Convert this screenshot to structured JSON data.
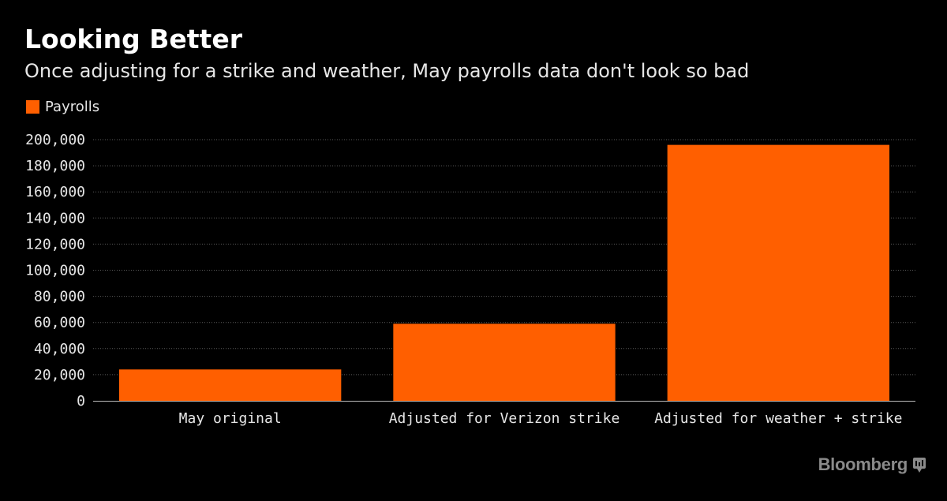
{
  "header": {
    "title": "Looking Better",
    "subtitle": "Once adjusting for a strike and weather, May payrolls data don't look so bad"
  },
  "branding": {
    "name": "Bloomberg",
    "icon": "bloomberg-terminal-icon"
  },
  "colors": {
    "background": "#000000",
    "bar": "#ff5f00",
    "grid": "#5a5a5a",
    "axis": "#bbbbbb",
    "text": "#e6e6e6"
  },
  "chart_data": {
    "type": "bar",
    "categories": [
      "May original",
      "Adjusted for Verizon strike",
      "Adjusted for weather + strike"
    ],
    "series": [
      {
        "name": "Payrolls",
        "values": [
          24000,
          59000,
          196000
        ]
      }
    ],
    "ylim": [
      0,
      200000
    ],
    "yticks": [
      0,
      20000,
      40000,
      60000,
      80000,
      100000,
      120000,
      140000,
      160000,
      180000,
      200000
    ],
    "ytick_labels": [
      "0",
      "20,000",
      "40,000",
      "60,000",
      "80,000",
      "100,000",
      "120,000",
      "140,000",
      "160,000",
      "180,000",
      "200,000"
    ],
    "grid": true,
    "legend": "top-left",
    "xlabel": "",
    "ylabel": ""
  }
}
